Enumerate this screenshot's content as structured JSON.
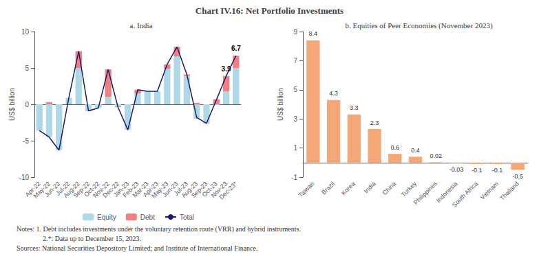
{
  "title": "Chart IV.16: Net Portfolio Investments",
  "annotations": [
    "Notes: 1. Debt includes investments under the voluntary retention route (VRR) and hybrid instruments.",
    "2.*: Data up to December 15, 2023.",
    "Sources: National Securities Depository Limited; and Institute of International Finance."
  ],
  "chart_data": [
    {
      "type": "bar",
      "title": "a. India",
      "categories": [
        "Apr-22",
        "May-22",
        "Jun-22",
        "Jul-22",
        "Aug-22",
        "Sep-22",
        "Oct-22",
        "Nov-22",
        "Dec-22",
        "Jan-23",
        "Feb-23",
        "Mar-23",
        "Apr-23",
        "May-23",
        "Jun-23",
        "Jul-23",
        "Aug-23",
        "Sep-23",
        "Oct-23",
        "Nov-23",
        "Dec-23*"
      ],
      "series": [
        {
          "name": "Equity",
          "color": "#ADD8E6",
          "values": [
            -3.6,
            -4.5,
            -6.3,
            0.9,
            5.0,
            -0.8,
            -0.5,
            1.0,
            -0.3,
            -3.5,
            1.5,
            1.8,
            1.8,
            4.9,
            6.6,
            3.9,
            -2.0,
            -2.5,
            -0.1,
            1.8,
            5.0
          ]
        },
        {
          "name": "Debt",
          "color": "#F08080",
          "values": [
            0.0,
            0.3,
            0.0,
            0.0,
            2.3,
            -0.1,
            0.0,
            3.8,
            -0.1,
            0.0,
            0.5,
            0.0,
            0.0,
            0.6,
            1.3,
            0.2,
            0.2,
            -0.1,
            0.7,
            2.1,
            1.7
          ]
        },
        {
          "name": "Total",
          "type": "line",
          "color": "#1a1a6e",
          "values": [
            -3.6,
            -4.5,
            -6.3,
            0.9,
            7.3,
            -0.9,
            -0.5,
            4.8,
            -0.4,
            -3.5,
            2.0,
            1.8,
            1.8,
            5.5,
            7.9,
            4.1,
            -1.8,
            -2.6,
            0.6,
            3.9,
            6.7
          ]
        }
      ],
      "stacked": true,
      "ylabel": "US$ billion",
      "ylim": [
        -10,
        10
      ],
      "yticks": [
        -10,
        -5,
        0,
        5,
        10
      ],
      "grid": false,
      "legend": "bottom",
      "annotations": [
        {
          "x": "Nov-23",
          "text": "3.9"
        },
        {
          "x": "Dec-23*",
          "text": "6.7"
        }
      ]
    },
    {
      "type": "bar",
      "title": "b. Equities of Peer Economies (November 2023)",
      "categories": [
        "Taiwan",
        "Brazil",
        "Korea",
        "India",
        "China",
        "Turkey",
        "Philippines",
        "Indonesia",
        "South Africa",
        "Vietnam",
        "Thailand"
      ],
      "values": [
        8.4,
        4.3,
        3.3,
        2.3,
        0.6,
        0.4,
        0.02,
        -0.03,
        -0.1,
        -0.1,
        -0.5
      ],
      "color": "#F4A878",
      "ylabel": "US$ billion",
      "ylim": [
        -1,
        9
      ],
      "yticks": [
        -1,
        1,
        3,
        5,
        7,
        9
      ],
      "grid": false,
      "data_labels": true
    }
  ]
}
